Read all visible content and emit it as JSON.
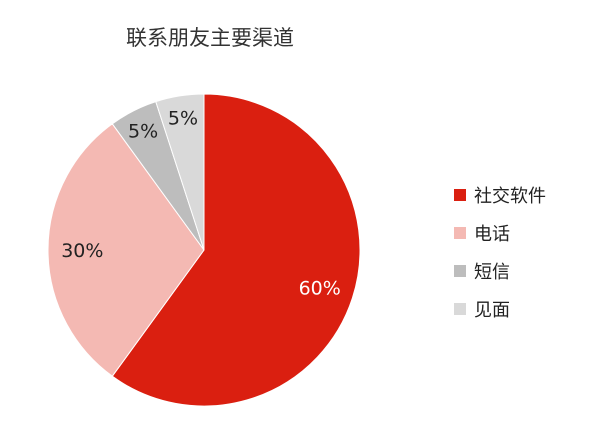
{
  "chart_data": {
    "type": "pie",
    "title": "联系朋友主要渠道",
    "categories": [
      "社交软件",
      "电话",
      "短信",
      "见面"
    ],
    "values": [
      60,
      30,
      5,
      5
    ],
    "labels": [
      "60%",
      "30%",
      "5%",
      "5%"
    ],
    "colors": [
      "#DA1F10",
      "#F4B9B3",
      "#BDBDBD",
      "#D9D9D9"
    ],
    "label_colors": [
      "#FFFFFF",
      "#222222",
      "#222222",
      "#222222"
    ],
    "start": "top",
    "direction": "clockwise",
    "legend_position": "right"
  }
}
